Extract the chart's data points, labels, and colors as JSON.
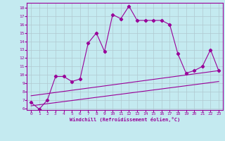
{
  "title": "",
  "xlabel": "Windchill (Refroidissement éolien,°C)",
  "background_color": "#c4eaf0",
  "line_color": "#990099",
  "grid_color": "#b0c8d0",
  "ylim": [
    5.8,
    18.6
  ],
  "xlim": [
    -0.5,
    23.5
  ],
  "yticks": [
    6,
    7,
    8,
    9,
    10,
    11,
    12,
    13,
    14,
    15,
    16,
    17,
    18
  ],
  "xticks": [
    0,
    1,
    2,
    3,
    4,
    5,
    6,
    7,
    8,
    9,
    10,
    11,
    12,
    13,
    14,
    15,
    16,
    17,
    18,
    19,
    20,
    21,
    22,
    23
  ],
  "main_x": [
    0,
    1,
    2,
    3,
    4,
    5,
    6,
    7,
    8,
    9,
    10,
    11,
    12,
    13,
    14,
    15,
    16,
    17,
    18,
    19,
    20,
    21,
    22,
    23
  ],
  "main_y": [
    6.7,
    5.9,
    7.0,
    9.8,
    9.8,
    9.2,
    9.5,
    13.8,
    15.0,
    12.8,
    17.2,
    16.7,
    18.2,
    16.5,
    16.5,
    16.5,
    16.5,
    16.0,
    12.5,
    10.2,
    10.5,
    11.0,
    13.0,
    10.5
  ],
  "line1_x": [
    0,
    23
  ],
  "line1_y": [
    7.5,
    10.5
  ],
  "line2_x": [
    0,
    23
  ],
  "line2_y": [
    6.3,
    9.2
  ]
}
